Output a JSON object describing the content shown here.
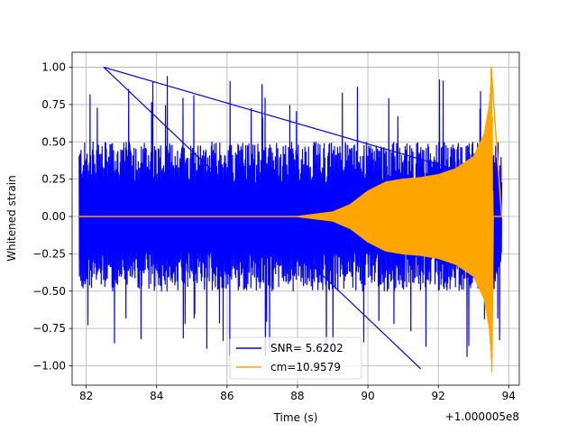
{
  "chart_data": {
    "type": "line",
    "title": "",
    "xlabel": "Time (s)",
    "ylabel": "Whitened strain",
    "x_offset_label": "+1.000005e8",
    "xlim": [
      81.6,
      94.3
    ],
    "ylim": [
      -1.13,
      1.1
    ],
    "x_ticks": [
      82,
      84,
      86,
      88,
      90,
      92,
      94
    ],
    "x_tick_labels": [
      "82",
      "84",
      "86",
      "88",
      "90",
      "92",
      "94"
    ],
    "y_ticks": [
      1.0,
      0.75,
      0.5,
      0.25,
      0.0,
      -0.25,
      -0.5,
      -0.75,
      -1.0
    ],
    "y_tick_labels": [
      "1.00",
      "0.75",
      "0.50",
      "0.25",
      "0.00",
      "−0.25",
      "−0.50",
      "−0.75",
      "−1.00"
    ],
    "grid": true,
    "legend_position": "bottom-center",
    "series": [
      {
        "name": "SNR= 5.6202",
        "color": "#0000ff",
        "kind": "noise",
        "x_range": [
          81.8,
          93.8
        ],
        "typical_amplitude": 0.5,
        "peak_max": 1.0,
        "peak_min": -1.02
      },
      {
        "name": "cm=10.9579",
        "color": "#ffa500",
        "kind": "chirp",
        "x_range": [
          81.8,
          93.8
        ],
        "envelope_points": [
          [
            81.8,
            0.0
          ],
          [
            88.0,
            0.0
          ],
          [
            89.0,
            0.03
          ],
          [
            89.5,
            0.08
          ],
          [
            90.0,
            0.17
          ],
          [
            90.5,
            0.23
          ],
          [
            91.0,
            0.25
          ],
          [
            91.5,
            0.26
          ],
          [
            92.0,
            0.28
          ],
          [
            92.5,
            0.32
          ],
          [
            93.0,
            0.4
          ],
          [
            93.3,
            0.55
          ],
          [
            93.45,
            0.75
          ],
          [
            93.52,
            1.0
          ],
          [
            93.55,
            0.0
          ],
          [
            93.8,
            0.0
          ]
        ],
        "peak_max": 1.0,
        "peak_min": -1.04
      }
    ]
  }
}
